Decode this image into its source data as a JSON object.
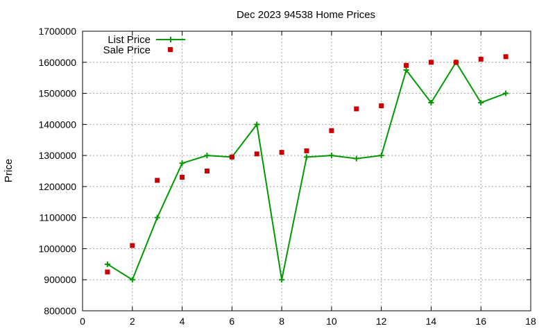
{
  "chart_data": {
    "type": "line",
    "title": "Dec 2023 94538 Home Prices",
    "xlabel": "",
    "ylabel": "Price",
    "xlim": [
      0,
      18
    ],
    "ylim": [
      800000,
      1700000
    ],
    "x_ticks": [
      0,
      2,
      4,
      6,
      8,
      10,
      12,
      14,
      16,
      18
    ],
    "y_ticks": [
      800000,
      900000,
      1000000,
      1100000,
      1200000,
      1300000,
      1400000,
      1500000,
      1600000,
      1700000
    ],
    "grid": true,
    "legend_position": "top-left",
    "series": [
      {
        "name": "List Price",
        "style": "line-with-plus-markers",
        "color": "#009900",
        "x": [
          1,
          2,
          3,
          4,
          5,
          6,
          7,
          8,
          9,
          10,
          11,
          12,
          13,
          14,
          15,
          16,
          17
        ],
        "values": [
          950000,
          900000,
          1100000,
          1275000,
          1300000,
          1295000,
          1400000,
          900000,
          1295000,
          1300000,
          1290000,
          1300000,
          1575000,
          1470000,
          1600000,
          1470000,
          1500000
        ]
      },
      {
        "name": "Sale Price",
        "style": "square-markers",
        "color": "#cc0000",
        "x": [
          1,
          2,
          3,
          4,
          5,
          6,
          7,
          8,
          9,
          10,
          11,
          12,
          13,
          14,
          15,
          16,
          17
        ],
        "values": [
          925000,
          1010000,
          1220000,
          1230000,
          1250000,
          1295000,
          1305000,
          1310000,
          1315000,
          1380000,
          1450000,
          1460000,
          1590000,
          1600000,
          1600000,
          1610000,
          1618000
        ]
      }
    ]
  }
}
